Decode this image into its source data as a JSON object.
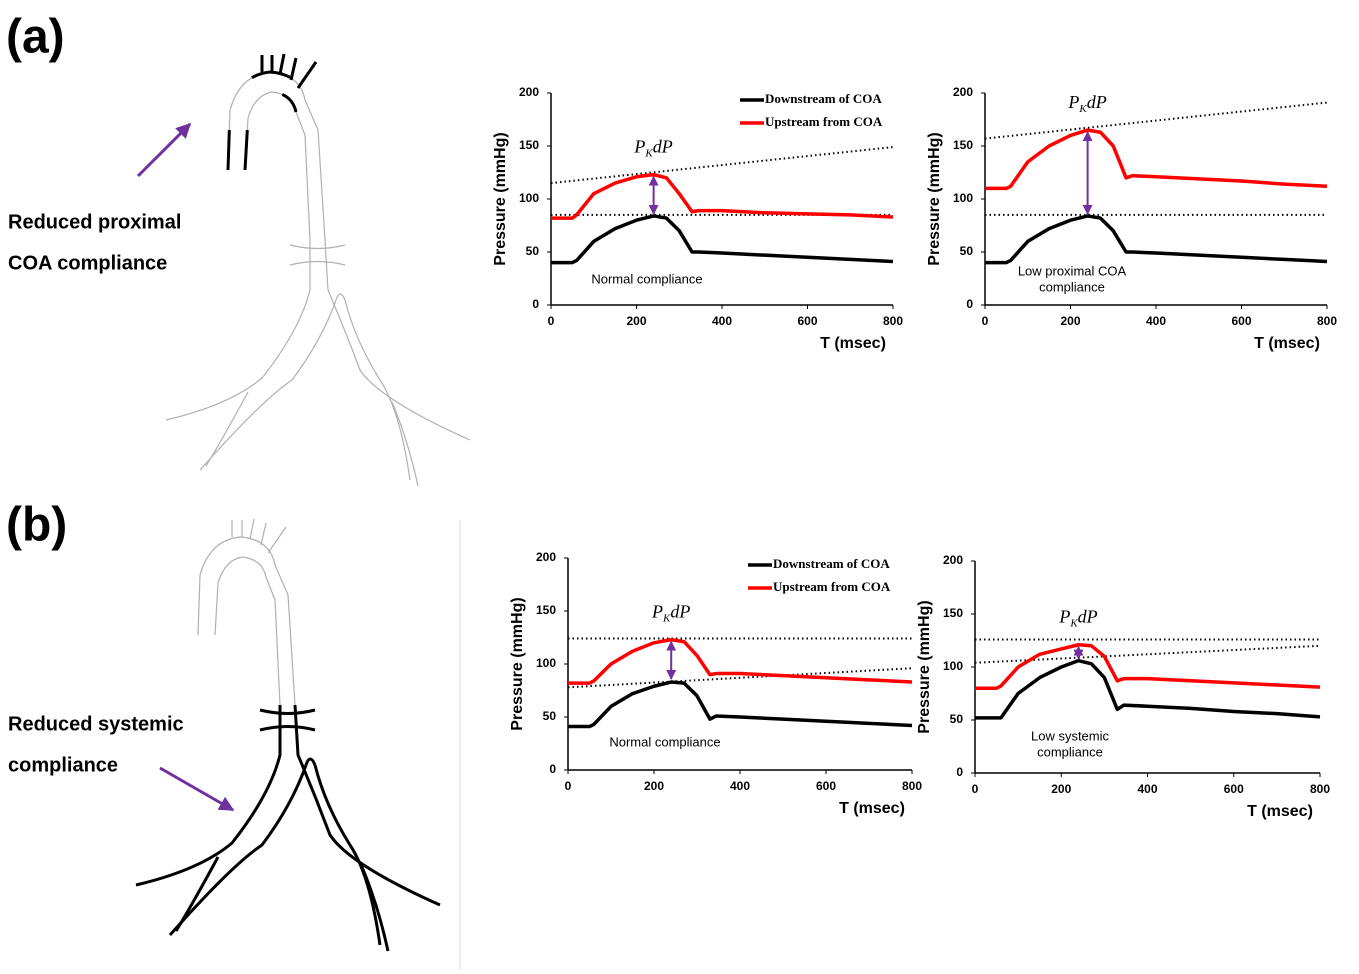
{
  "panels": [
    {
      "label": "(a)",
      "caption": [
        "Reduced proximal",
        "COA compliance"
      ]
    },
    {
      "label": "(b)",
      "caption": [
        "Reduced systemic",
        "compliance"
      ]
    }
  ],
  "chart_data": [
    {
      "type": "line",
      "xlabel": "T (msec)",
      "ylabel": "Pressure (mmHg)",
      "xlim": [
        0,
        800
      ],
      "ylim": [
        0,
        200
      ],
      "xticks": [
        0,
        200,
        400,
        600,
        800
      ],
      "yticks": [
        0,
        50,
        100,
        150,
        200
      ],
      "x": [
        0,
        50,
        60,
        100,
        150,
        200,
        240,
        270,
        300,
        330,
        345,
        400,
        500,
        600,
        700,
        800
      ],
      "series": [
        {
          "name": "Downstream of COA",
          "color": "#000000",
          "values": [
            40,
            40,
            42,
            60,
            72,
            80,
            84,
            82,
            70,
            50,
            50,
            49,
            47,
            45,
            43,
            41
          ]
        },
        {
          "name": "Upstream from COA",
          "color": "#ff0000",
          "values": [
            82,
            82,
            85,
            105,
            115,
            121,
            123,
            120,
            105,
            88,
            89,
            89,
            87,
            86,
            85,
            83
          ]
        }
      ],
      "legend": true,
      "annotation": [
        "Normal compliance"
      ],
      "peak_label": [
        "P",
        "K",
        "dP"
      ],
      "arrow": {
        "x": 240,
        "y": [
          123,
          84
        ],
        "color": "#7030a0"
      },
      "ref_lines": [
        {
          "x": [
            0,
            800
          ],
          "y": [
            115,
            149
          ]
        },
        {
          "x": [
            0,
            800
          ],
          "y": [
            85,
            85
          ]
        }
      ]
    },
    {
      "type": "line",
      "xlabel": "T (msec)",
      "ylabel": "Pressure (mmHg)",
      "xlim": [
        0,
        800
      ],
      "ylim": [
        0,
        200
      ],
      "xticks": [
        0,
        200,
        400,
        600,
        800
      ],
      "yticks": [
        0,
        50,
        100,
        150,
        200
      ],
      "x": [
        0,
        50,
        60,
        100,
        150,
        200,
        240,
        270,
        300,
        330,
        345,
        400,
        500,
        600,
        700,
        800
      ],
      "series": [
        {
          "name": "Downstream of COA",
          "color": "#000000",
          "values": [
            40,
            40,
            42,
            60,
            72,
            80,
            84,
            82,
            70,
            50,
            50,
            49,
            47,
            45,
            43,
            41
          ]
        },
        {
          "name": "Upstream from COA",
          "color": "#ff0000",
          "values": [
            110,
            110,
            112,
            135,
            150,
            160,
            165,
            163,
            150,
            120,
            122,
            121,
            119,
            117,
            114,
            112
          ]
        }
      ],
      "legend": false,
      "annotation": [
        "Low proximal COA",
        "compliance"
      ],
      "peak_label": [
        "P",
        "K",
        "dP"
      ],
      "arrow": {
        "x": 240,
        "y": [
          165,
          84
        ],
        "color": "#7030a0"
      },
      "ref_lines": [
        {
          "x": [
            0,
            800
          ],
          "y": [
            157,
            191
          ]
        },
        {
          "x": [
            0,
            800
          ],
          "y": [
            85,
            85
          ]
        }
      ]
    },
    {
      "type": "line",
      "xlabel": "T (msec)",
      "ylabel": "Pressure (mmHg)",
      "xlim": [
        0,
        800
      ],
      "ylim": [
        0,
        200
      ],
      "xticks": [
        0,
        200,
        400,
        600,
        800
      ],
      "yticks": [
        0,
        50,
        100,
        150,
        200
      ],
      "x": [
        0,
        50,
        60,
        100,
        150,
        200,
        240,
        270,
        300,
        330,
        345,
        400,
        500,
        600,
        700,
        800
      ],
      "series": [
        {
          "name": "Downstream of COA",
          "color": "#000000",
          "values": [
            41,
            41,
            43,
            60,
            72,
            79,
            83,
            82,
            70,
            48,
            51,
            50,
            48,
            46,
            44,
            42
          ]
        },
        {
          "name": "Upstream from COA",
          "color": "#ff0000",
          "values": [
            82,
            82,
            84,
            100,
            112,
            120,
            123,
            121,
            108,
            90,
            91,
            91,
            89,
            87,
            85,
            83
          ]
        }
      ],
      "legend": true,
      "annotation": [
        "Normal compliance"
      ],
      "peak_label": [
        "P",
        "K",
        "dP"
      ],
      "arrow": {
        "x": 240,
        "y": [
          123,
          84
        ],
        "color": "#7030a0"
      },
      "ref_lines": [
        {
          "x": [
            0,
            800
          ],
          "y": [
            124,
            124
          ]
        },
        {
          "x": [
            0,
            800
          ],
          "y": [
            78,
            96
          ]
        }
      ]
    },
    {
      "type": "line",
      "xlabel": "T (msec)",
      "ylabel": "Pressure (mmHg)",
      "xlim": [
        0,
        800
      ],
      "ylim": [
        0,
        200
      ],
      "xticks": [
        0,
        200,
        400,
        600,
        800
      ],
      "yticks": [
        0,
        50,
        100,
        150,
        200
      ],
      "x": [
        0,
        50,
        60,
        100,
        150,
        200,
        240,
        270,
        300,
        330,
        345,
        400,
        500,
        600,
        700,
        800
      ],
      "series": [
        {
          "name": "Downstream of COA",
          "color": "#000000",
          "values": [
            52,
            52,
            52,
            75,
            90,
            100,
            106,
            103,
            90,
            60,
            64,
            63,
            61,
            58,
            56,
            53
          ]
        },
        {
          "name": "Upstream from COA",
          "color": "#ff0000",
          "values": [
            80,
            80,
            82,
            100,
            112,
            117,
            121,
            120,
            110,
            87,
            89,
            89,
            87,
            85,
            83,
            81
          ]
        }
      ],
      "legend": false,
      "annotation": [
        "Low systemic",
        "compliance"
      ],
      "peak_label": [
        "P",
        "K",
        "dP"
      ],
      "arrow": {
        "x": 240,
        "y": [
          121,
          106
        ],
        "color": "#7030a0"
      },
      "ref_lines": [
        {
          "x": [
            0,
            800
          ],
          "y": [
            126,
            126
          ]
        },
        {
          "x": [
            0,
            800
          ],
          "y": [
            104,
            120
          ]
        }
      ]
    }
  ]
}
